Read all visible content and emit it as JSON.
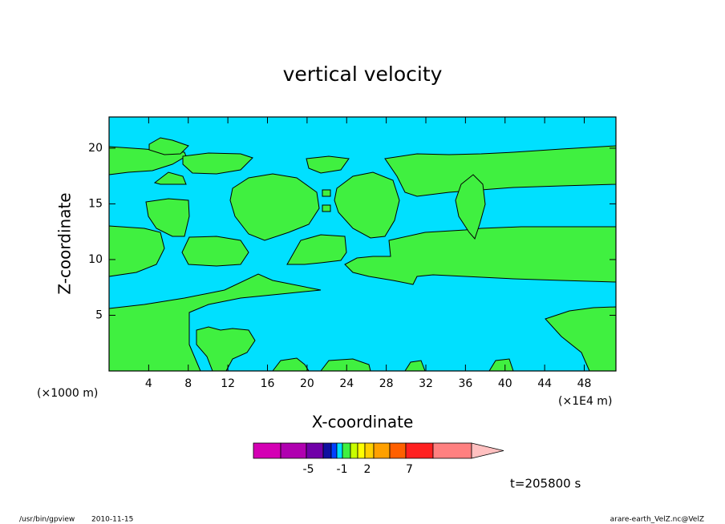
{
  "chart_data": {
    "type": "contour",
    "title": "vertical velocity",
    "xlabel": "X-coordinate",
    "ylabel": "Z-coordinate",
    "xunit": "(×1000 m)",
    "xunit2": "(×1E4 m)",
    "xlim": [
      0,
      51.2
    ],
    "ylim": [
      0,
      22.8
    ],
    "xticks": [
      4,
      8,
      12,
      16,
      20,
      24,
      28,
      32,
      36,
      40,
      44,
      48
    ],
    "yticks": [
      5,
      10,
      15,
      20
    ],
    "colorbar": {
      "colors": [
        "#d400b4",
        "#b000b0",
        "#7000a8",
        "#1010a0",
        "#0040ff",
        "#00e0ff",
        "#40f040",
        "#c8ff00",
        "#ffff00",
        "#ffd000",
        "#ffa000",
        "#ff6000",
        "#ff2020",
        "#ff8080",
        "#ffc0c0"
      ],
      "ticks": [
        -5,
        -1,
        2,
        7
      ]
    },
    "annotation": "t=205800 s",
    "footer_left": "/usr/bin/gpview",
    "footer_date": "2010-11-15",
    "footer_right": "arare-earth_VelZ.nc@VelZ"
  }
}
